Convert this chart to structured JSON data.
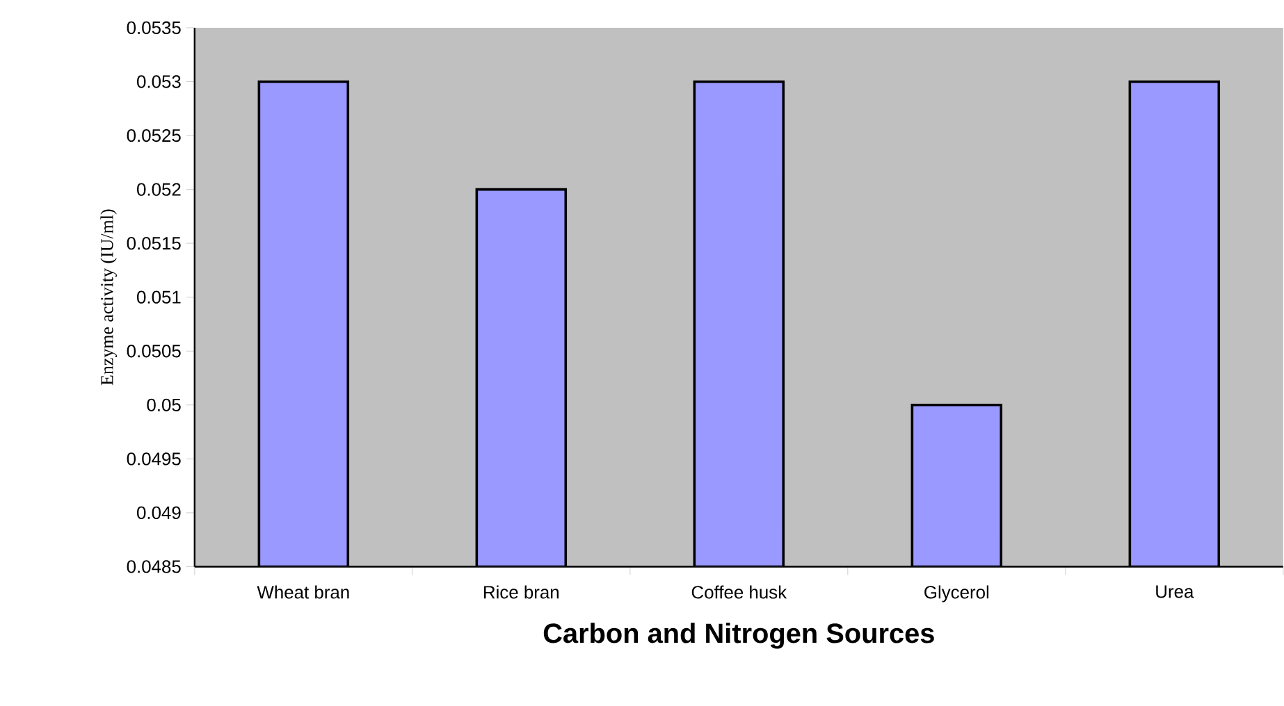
{
  "chart_data": {
    "type": "bar",
    "xlabel": "Carbon and Nitrogen Sources",
    "ylabel": "Enzyme activity (IU/ml)",
    "categories": [
      "Wheat bran",
      "Rice bran",
      "Coffee husk",
      "Glycerol",
      "Urea"
    ],
    "values": [
      0.053,
      0.052,
      0.053,
      0.05,
      0.053
    ],
    "color": "#9999ff",
    "ylim": [
      0.0485,
      0.0535
    ],
    "yticks": [
      0.0485,
      0.049,
      0.0495,
      0.05,
      0.0505,
      0.051,
      0.0515,
      0.052,
      0.0525,
      0.053,
      0.0535
    ]
  }
}
